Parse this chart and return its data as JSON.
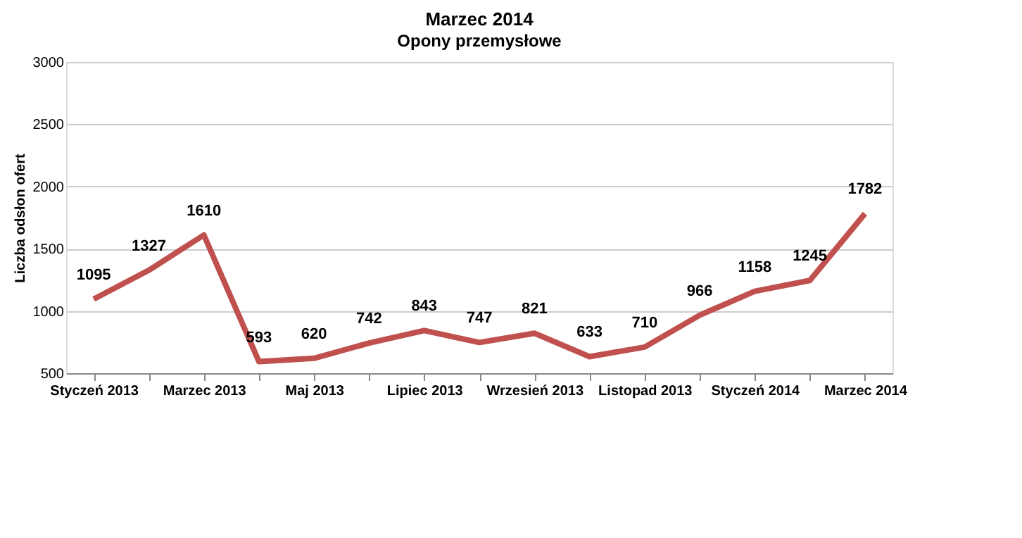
{
  "chart_data": {
    "type": "line",
    "title": "Marzec 2014",
    "subtitle": "Opony przemysłowe",
    "ylabel": "Liczba odsłon ofert",
    "categories": [
      "Styczeń 2013",
      null,
      "Marzec 2013",
      null,
      "Maj 2013",
      null,
      "Lipiec 2013",
      null,
      "Wrzesień 2013",
      null,
      "Listopad 2013",
      null,
      "Styczeń 2014",
      null,
      "Marzec 2014"
    ],
    "series": [
      {
        "color": "#c0504d",
        "values": [
          1095,
          1327,
          1610,
          593,
          620,
          742,
          843,
          747,
          821,
          633,
          710,
          966,
          1158,
          1245,
          1782
        ]
      }
    ],
    "ylim": [
      500,
      3000
    ],
    "yticks": [
      500,
      1000,
      1500,
      2000,
      2500,
      3000
    ],
    "grid": "y",
    "data_labels": true,
    "marker": "none",
    "line_style": "solid"
  }
}
